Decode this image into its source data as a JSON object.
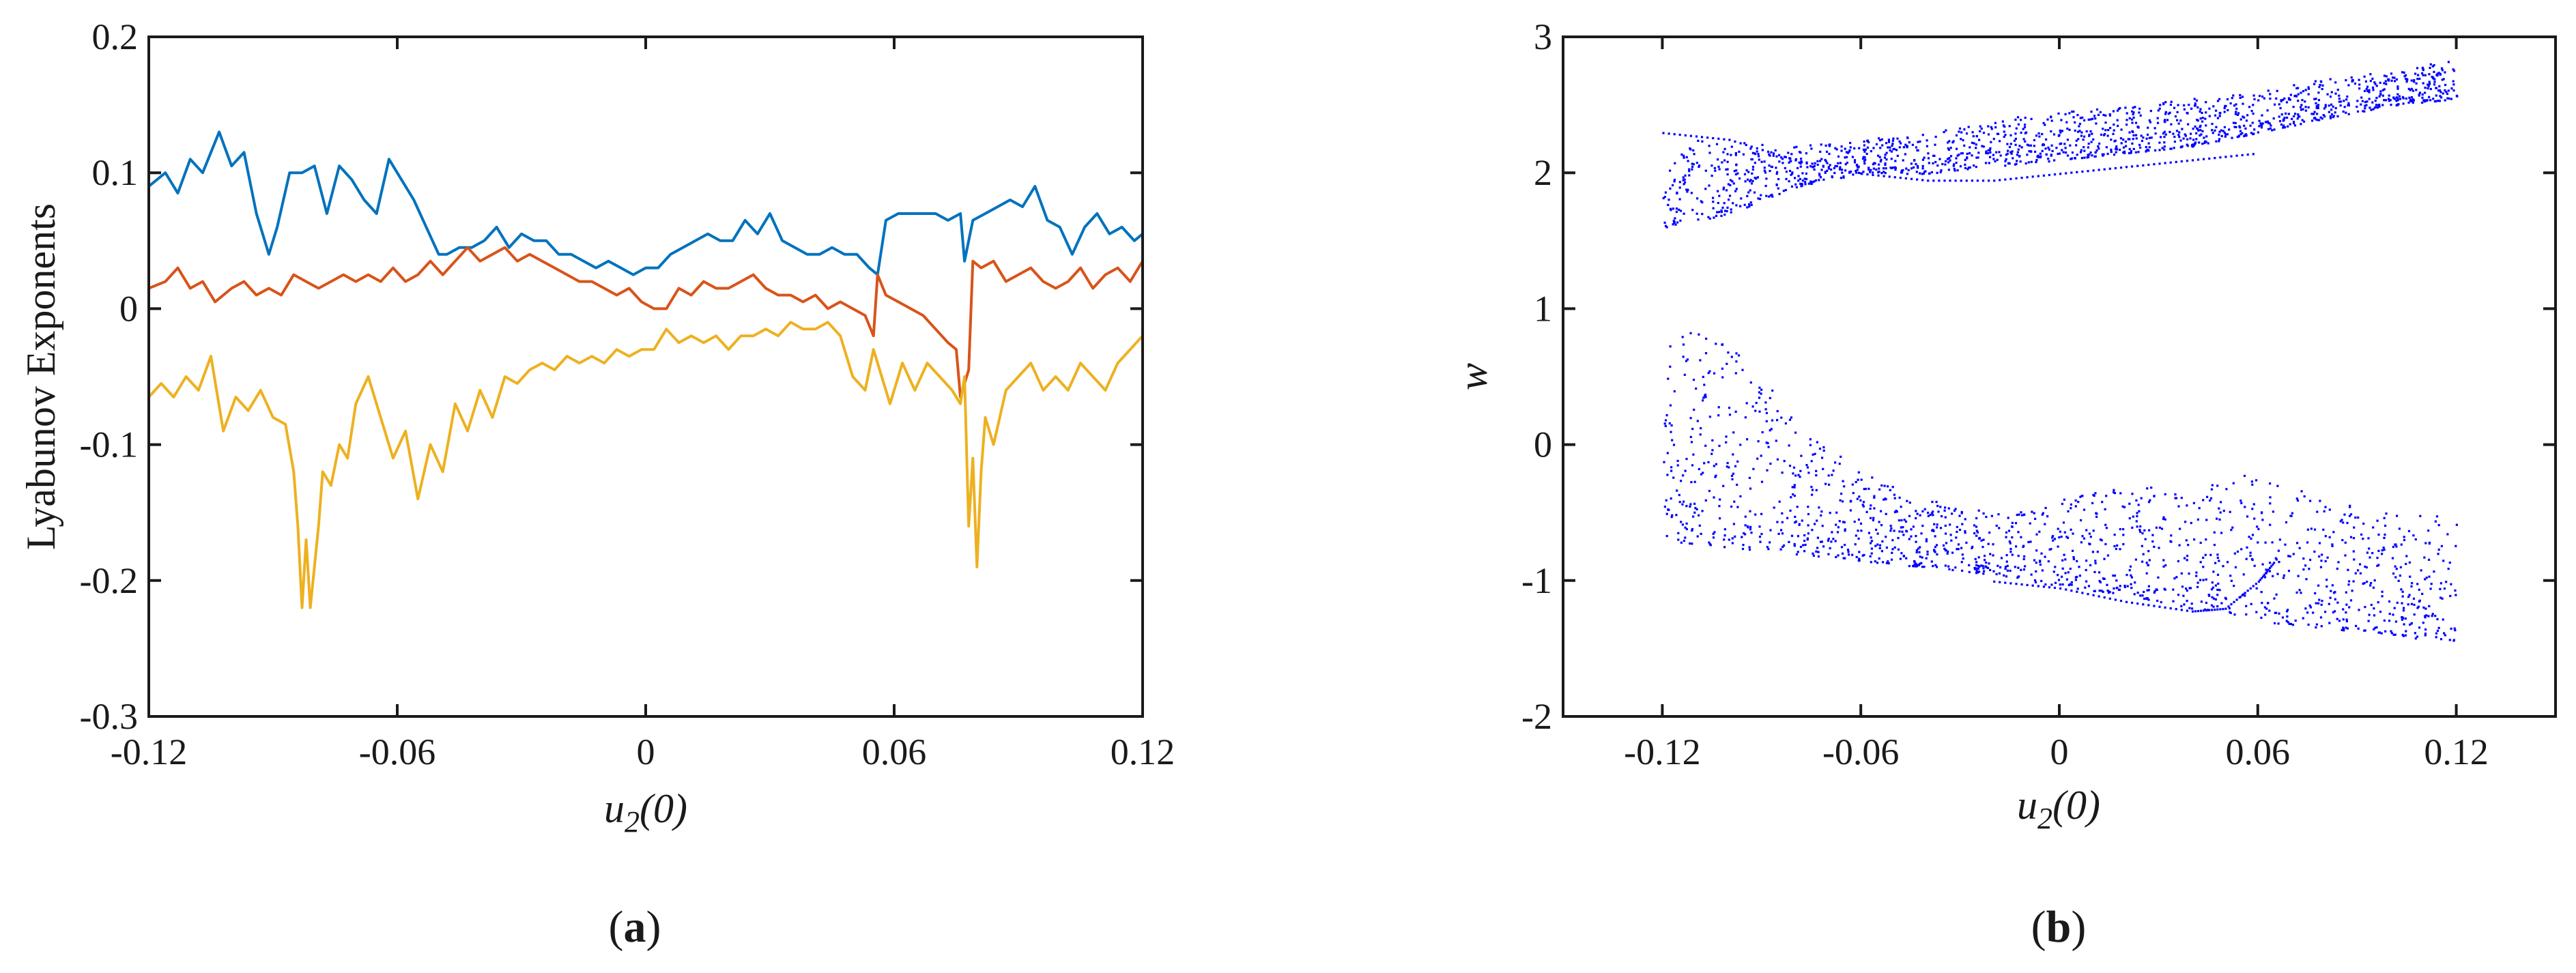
{
  "chart_data": [
    {
      "type": "line",
      "panel_label_open": "(",
      "panel_label_letter": "a",
      "panel_label_close": ")",
      "xlabel_main": "u",
      "xlabel_sub": "2",
      "xlabel_tail": "(0)",
      "ylabel": "Lyabunov Exponents",
      "xlim": [
        -0.12,
        0.12
      ],
      "ylim": [
        -0.3,
        0.2
      ],
      "xticks": [
        -0.12,
        -0.06,
        0,
        0.06,
        0.12
      ],
      "xtick_labels": [
        "-0.12",
        "-0.06",
        "0",
        "0.06",
        "0.12"
      ],
      "yticks": [
        -0.3,
        -0.2,
        -0.1,
        0,
        0.1,
        0.2
      ],
      "ytick_labels": [
        "-0.3",
        "-0.2",
        "-0.1",
        "0",
        "0.1",
        "0.2"
      ],
      "grid": false,
      "series": [
        {
          "color": "#0072BD",
          "x": [
            -0.12,
            -0.116,
            -0.113,
            -0.11,
            -0.107,
            -0.103,
            -0.1,
            -0.097,
            -0.094,
            -0.091,
            -0.089,
            -0.086,
            -0.083,
            -0.08,
            -0.077,
            -0.074,
            -0.071,
            -0.068,
            -0.065,
            -0.062,
            -0.059,
            -0.056,
            -0.053,
            -0.05,
            -0.048,
            -0.045,
            -0.042,
            -0.039,
            -0.036,
            -0.033,
            -0.03,
            -0.027,
            -0.024,
            -0.021,
            -0.018,
            -0.015,
            -0.012,
            -0.009,
            -0.006,
            -0.003,
            0,
            0.003,
            0.006,
            0.009,
            0.012,
            0.015,
            0.018,
            0.021,
            0.024,
            0.027,
            0.03,
            0.033,
            0.036,
            0.039,
            0.042,
            0.045,
            0.048,
            0.051,
            0.054,
            0.056,
            0.058,
            0.061,
            0.064,
            0.067,
            0.07,
            0.073,
            0.076,
            0.077,
            0.079,
            0.082,
            0.085,
            0.088,
            0.091,
            0.094,
            0.097,
            0.1,
            0.103,
            0.106,
            0.109,
            0.112,
            0.115,
            0.118,
            0.12
          ],
          "y": [
            0.09,
            0.1,
            0.085,
            0.11,
            0.1,
            0.13,
            0.105,
            0.115,
            0.07,
            0.04,
            0.06,
            0.1,
            0.1,
            0.105,
            0.07,
            0.105,
            0.095,
            0.08,
            0.07,
            0.11,
            0.095,
            0.08,
            0.06,
            0.04,
            0.04,
            0.045,
            0.045,
            0.05,
            0.06,
            0.045,
            0.055,
            0.05,
            0.05,
            0.04,
            0.04,
            0.035,
            0.03,
            0.035,
            0.03,
            0.025,
            0.03,
            0.03,
            0.04,
            0.045,
            0.05,
            0.055,
            0.05,
            0.05,
            0.065,
            0.055,
            0.07,
            0.05,
            0.045,
            0.04,
            0.04,
            0.045,
            0.04,
            0.04,
            0.03,
            0.025,
            0.065,
            0.07,
            0.07,
            0.07,
            0.07,
            0.065,
            0.07,
            0.035,
            0.065,
            0.07,
            0.075,
            0.08,
            0.075,
            0.09,
            0.065,
            0.06,
            0.04,
            0.06,
            0.07,
            0.055,
            0.06,
            0.05,
            0.055
          ]
        },
        {
          "color": "#D95319",
          "x": [
            -0.12,
            -0.116,
            -0.113,
            -0.11,
            -0.107,
            -0.104,
            -0.1,
            -0.097,
            -0.094,
            -0.091,
            -0.088,
            -0.085,
            -0.082,
            -0.079,
            -0.076,
            -0.073,
            -0.07,
            -0.067,
            -0.064,
            -0.061,
            -0.058,
            -0.055,
            -0.052,
            -0.049,
            -0.046,
            -0.043,
            -0.04,
            -0.037,
            -0.034,
            -0.031,
            -0.028,
            -0.025,
            -0.022,
            -0.019,
            -0.016,
            -0.013,
            -0.01,
            -0.007,
            -0.004,
            -0.001,
            0.002,
            0.005,
            0.008,
            0.011,
            0.014,
            0.017,
            0.02,
            0.023,
            0.026,
            0.029,
            0.032,
            0.035,
            0.038,
            0.041,
            0.044,
            0.047,
            0.05,
            0.053,
            0.055,
            0.056,
            0.058,
            0.061,
            0.064,
            0.067,
            0.07,
            0.073,
            0.075,
            0.076,
            0.078,
            0.079,
            0.081,
            0.084,
            0.087,
            0.09,
            0.093,
            0.096,
            0.099,
            0.102,
            0.105,
            0.108,
            0.111,
            0.114,
            0.117,
            0.12
          ],
          "y": [
            0.015,
            0.02,
            0.03,
            0.015,
            0.02,
            0.005,
            0.015,
            0.02,
            0.01,
            0.015,
            0.01,
            0.025,
            0.02,
            0.015,
            0.02,
            0.025,
            0.02,
            0.025,
            0.02,
            0.03,
            0.02,
            0.025,
            0.035,
            0.025,
            0.035,
            0.045,
            0.035,
            0.04,
            0.045,
            0.035,
            0.04,
            0.035,
            0.03,
            0.025,
            0.02,
            0.02,
            0.015,
            0.01,
            0.015,
            0.005,
            0.0,
            0.0,
            0.015,
            0.01,
            0.02,
            0.015,
            0.015,
            0.02,
            0.025,
            0.015,
            0.01,
            0.01,
            0.005,
            0.01,
            0.0,
            0.005,
            0.0,
            -0.005,
            -0.02,
            0.025,
            0.01,
            0.005,
            0.0,
            -0.005,
            -0.015,
            -0.025,
            -0.03,
            -0.065,
            -0.045,
            0.035,
            0.03,
            0.035,
            0.02,
            0.025,
            0.03,
            0.02,
            0.015,
            0.02,
            0.03,
            0.015,
            0.025,
            0.03,
            0.02,
            0.035
          ]
        },
        {
          "color": "#EDB120",
          "x": [
            -0.12,
            -0.117,
            -0.114,
            -0.111,
            -0.108,
            -0.105,
            -0.102,
            -0.099,
            -0.096,
            -0.093,
            -0.09,
            -0.087,
            -0.085,
            -0.084,
            -0.083,
            -0.082,
            -0.081,
            -0.079,
            -0.078,
            -0.076,
            -0.074,
            -0.072,
            -0.07,
            -0.067,
            -0.064,
            -0.061,
            -0.058,
            -0.055,
            -0.052,
            -0.049,
            -0.046,
            -0.043,
            -0.04,
            -0.037,
            -0.034,
            -0.031,
            -0.028,
            -0.025,
            -0.022,
            -0.019,
            -0.016,
            -0.013,
            -0.01,
            -0.007,
            -0.004,
            -0.001,
            0.002,
            0.005,
            0.008,
            0.011,
            0.014,
            0.017,
            0.02,
            0.023,
            0.026,
            0.029,
            0.032,
            0.035,
            0.038,
            0.041,
            0.044,
            0.047,
            0.05,
            0.053,
            0.055,
            0.057,
            0.059,
            0.062,
            0.065,
            0.068,
            0.071,
            0.074,
            0.076,
            0.077,
            0.078,
            0.079,
            0.08,
            0.081,
            0.082,
            0.084,
            0.087,
            0.09,
            0.093,
            0.096,
            0.099,
            0.102,
            0.105,
            0.108,
            0.111,
            0.114,
            0.117,
            0.12
          ],
          "y": [
            -0.065,
            -0.055,
            -0.065,
            -0.05,
            -0.06,
            -0.035,
            -0.09,
            -0.065,
            -0.075,
            -0.06,
            -0.08,
            -0.085,
            -0.12,
            -0.16,
            -0.22,
            -0.17,
            -0.22,
            -0.16,
            -0.12,
            -0.13,
            -0.1,
            -0.11,
            -0.07,
            -0.05,
            -0.08,
            -0.11,
            -0.09,
            -0.14,
            -0.1,
            -0.12,
            -0.07,
            -0.09,
            -0.06,
            -0.08,
            -0.05,
            -0.055,
            -0.045,
            -0.04,
            -0.045,
            -0.035,
            -0.04,
            -0.035,
            -0.04,
            -0.03,
            -0.035,
            -0.03,
            -0.03,
            -0.015,
            -0.025,
            -0.02,
            -0.025,
            -0.02,
            -0.03,
            -0.02,
            -0.02,
            -0.015,
            -0.02,
            -0.01,
            -0.015,
            -0.015,
            -0.01,
            -0.02,
            -0.05,
            -0.06,
            -0.03,
            -0.05,
            -0.07,
            -0.04,
            -0.06,
            -0.04,
            -0.05,
            -0.06,
            -0.07,
            -0.05,
            -0.16,
            -0.11,
            -0.19,
            -0.12,
            -0.08,
            -0.1,
            -0.06,
            -0.05,
            -0.04,
            -0.06,
            -0.05,
            -0.06,
            -0.04,
            -0.05,
            -0.06,
            -0.04,
            -0.03,
            -0.02
          ]
        }
      ]
    },
    {
      "type": "scatter",
      "panel_label_open": "(",
      "panel_label_letter": "b",
      "panel_label_close": ")",
      "xlabel_main": "u",
      "xlabel_sub": "2",
      "xlabel_tail": "(0)",
      "ylabel": "w",
      "xlim": [
        -0.15,
        0.15
      ],
      "ylim": [
        -2,
        3
      ],
      "xticks": [
        -0.12,
        -0.06,
        0,
        0.06,
        0.12
      ],
      "xtick_labels": [
        "-0.12",
        "-0.06",
        "0",
        "0.06",
        "0.12"
      ],
      "yticks": [
        -2,
        -1,
        0,
        1,
        2,
        3
      ],
      "ytick_labels": [
        "-2",
        "-1",
        "0",
        "1",
        "2",
        "3"
      ],
      "grid": false,
      "marker_color": "#0000FF",
      "bands": [
        {
          "x": [
            -0.12,
            -0.1,
            -0.08,
            -0.06,
            -0.04,
            -0.02,
            0,
            0.02,
            0.04,
            0.06,
            0.08,
            0.1,
            0.12
          ],
          "lower": [
            1.6,
            1.7,
            1.9,
            2.0,
            2.0,
            2.05,
            2.1,
            2.15,
            2.2,
            2.3,
            2.4,
            2.5,
            2.55
          ],
          "upper": [
            2.25,
            2.25,
            2.2,
            2.25,
            2.3,
            2.4,
            2.45,
            2.5,
            2.55,
            2.6,
            2.7,
            2.75,
            2.85
          ]
        },
        {
          "x": [
            -0.12,
            -0.1,
            -0.08,
            -0.06,
            -0.04,
            -0.02,
            0,
            0.02,
            0.04,
            0.06,
            0.08,
            0.1,
            0.12
          ],
          "lower": [
            -0.7,
            -0.75,
            -0.8,
            -0.85,
            -0.9,
            -0.95,
            -1.05,
            -1.1,
            -1.2,
            -1.3,
            -1.35,
            -1.4,
            -1.45
          ],
          "upper": [
            0.85,
            0.8,
            0.2,
            -0.2,
            -0.4,
            -0.5,
            -0.4,
            -0.3,
            -0.3,
            -0.2,
            -0.4,
            -0.5,
            -0.5
          ]
        }
      ],
      "curves": [
        {
          "x": [
            -0.12,
            -0.1,
            -0.08,
            -0.06,
            -0.04,
            -0.02,
            0,
            0.02,
            0.04,
            0.06
          ],
          "y": [
            2.3,
            2.25,
            2.1,
            2.0,
            1.95,
            1.95,
            2.0,
            2.05,
            2.1,
            2.15
          ]
        },
        {
          "x": [
            -0.02,
            0,
            0.02,
            0.04,
            0.05,
            0.06,
            0.065
          ],
          "y": [
            -1.0,
            -1.05,
            -1.15,
            -1.22,
            -1.2,
            -1.0,
            -0.85
          ]
        }
      ]
    }
  ]
}
